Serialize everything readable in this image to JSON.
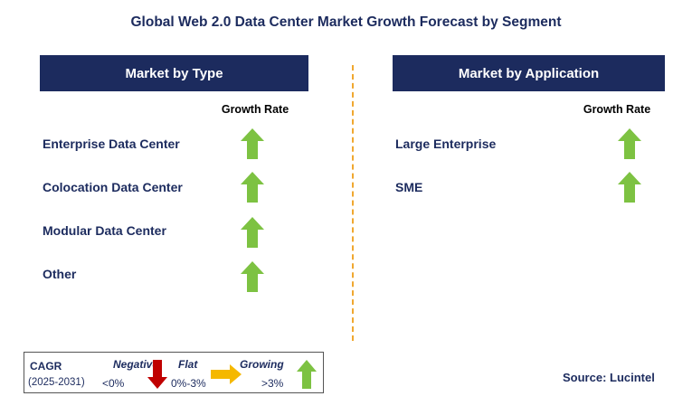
{
  "title": "Global Web 2.0 Data Center Market Growth Forecast by Segment",
  "left_panel": {
    "header": "Market by Type",
    "column_label": "Growth Rate",
    "rows": [
      {
        "label": "Enterprise Data Center",
        "growth": "growing"
      },
      {
        "label": "Colocation Data Center",
        "growth": "growing"
      },
      {
        "label": "Modular Data Center",
        "growth": "growing"
      },
      {
        "label": "Other",
        "growth": "growing"
      }
    ]
  },
  "right_panel": {
    "header": "Market by Application",
    "column_label": "Growth Rate",
    "rows": [
      {
        "label": "Large Enterprise",
        "growth": "growing"
      },
      {
        "label": "SME",
        "growth": "growing"
      }
    ]
  },
  "legend": {
    "cagr_label": "CAGR",
    "period": "(2025-2031)",
    "negative_label": "Negative",
    "negative_range": "<0%",
    "flat_label": "Flat",
    "flat_range": "0%-3%",
    "growing_label": "Growing",
    "growing_range": ">3%"
  },
  "source": "Source: Lucintel",
  "colors": {
    "navy": "#1c2b5e",
    "growing_arrow": "#7dc242",
    "flat_arrow": "#f5b800",
    "negative_arrow": "#c00000",
    "divider": "#f0a830"
  },
  "icons": {
    "growing": "up-arrow-icon",
    "flat": "right-arrow-icon",
    "negative": "down-arrow-icon"
  }
}
